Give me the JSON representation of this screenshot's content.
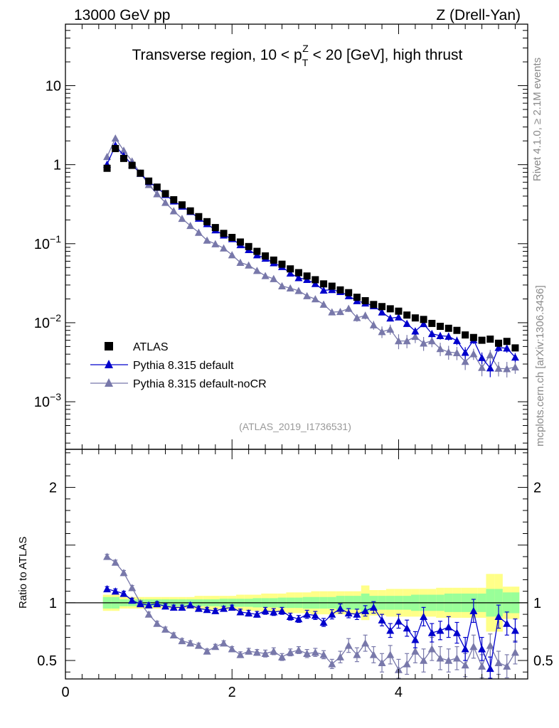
{
  "header": {
    "left": "13000 GeV pp",
    "right": "Z (Drell-Yan)"
  },
  "side_text": {
    "rivet": "Rivet 4.1.0, ≥ 2.1M events",
    "mcplots": "mcplots.cern.ch [arXiv:1306.3436]"
  },
  "colors": {
    "data": "#000000",
    "default": "#0000cc",
    "nocr": "#7878aa",
    "band_stat": "#99ff99",
    "band_total": "#ffff88",
    "ref_label": "#999999"
  },
  "chart_data": {
    "type": "scatter",
    "title": "Transverse region, 10 < p_T^Z < 20 [GeV], high thrust",
    "title_parts": {
      "before": "Transverse region, 10 < p",
      "sub": "T",
      "sup": "Z",
      "after": " < 20 [GeV], high thrust"
    },
    "analysis_label": "(ATLAS_2019_I1736531)",
    "xlim": [
      0,
      5.55
    ],
    "x_ticks": [
      0,
      2,
      4
    ],
    "x_tick_labels": [
      "0",
      "2",
      "4"
    ],
    "main": {
      "yscale": "log",
      "ylim": [
        0.00025,
        60
      ],
      "y_ticks": [
        10,
        1,
        0.1,
        0.01,
        0.001
      ],
      "y_tick_labels": {
        "10": {
          "base": "10",
          "exp": ""
        },
        "1": {
          "base": "1",
          "exp": ""
        },
        "0.1": {
          "base": "10",
          "exp": "−1"
        },
        "0.01": {
          "base": "10",
          "exp": "−2"
        },
        "0.001": {
          "base": "10",
          "exp": "−3"
        }
      }
    },
    "ratio": {
      "ylabel": "Ratio to ATLAS",
      "ylim": [
        0.34,
        2.33
      ],
      "y_ticks": [
        0.5,
        1,
        2
      ],
      "y_tick_labels": [
        "0.5",
        "1",
        "2"
      ]
    },
    "legend": {
      "location": "lower-left",
      "entries": [
        {
          "key": "atlas",
          "label": "ATLAS"
        },
        {
          "key": "default",
          "label": "Pythia 8.315 default"
        },
        {
          "key": "nocr",
          "label": "Pythia 8.315 default-noCR"
        }
      ]
    },
    "x": [
      0.5,
      0.6,
      0.7,
      0.8,
      0.9,
      1.0,
      1.1,
      1.2,
      1.3,
      1.4,
      1.5,
      1.6,
      1.7,
      1.8,
      1.9,
      2.0,
      2.1,
      2.2,
      2.3,
      2.4,
      2.5,
      2.6,
      2.7,
      2.8,
      2.9,
      3.0,
      3.1,
      3.2,
      3.3,
      3.4,
      3.5,
      3.6,
      3.7,
      3.8,
      3.9,
      4.0,
      4.1,
      4.2,
      4.3,
      4.4,
      4.5,
      4.6,
      4.7,
      4.8,
      4.9,
      5.0,
      5.1,
      5.2,
      5.3,
      5.4
    ],
    "series": [
      {
        "name": "ATLAS",
        "key": "atlas",
        "values": [
          0.9,
          1.6,
          1.2,
          0.98,
          0.78,
          0.62,
          0.52,
          0.43,
          0.36,
          0.31,
          0.26,
          0.22,
          0.19,
          0.16,
          0.135,
          0.12,
          0.105,
          0.092,
          0.08,
          0.07,
          0.062,
          0.055,
          0.048,
          0.043,
          0.039,
          0.035,
          0.031,
          0.029,
          0.026,
          0.024,
          0.021,
          0.019,
          0.017,
          0.016,
          0.015,
          0.014,
          0.0125,
          0.0115,
          0.011,
          0.0098,
          0.009,
          0.0085,
          0.008,
          0.007,
          0.0065,
          0.006,
          0.0062,
          0.0055,
          0.0058,
          0.0048
        ],
        "band_stat": [
          0.05,
          0.05,
          0.03,
          0.03,
          0.03,
          0.03,
          0.03,
          0.03,
          0.03,
          0.03,
          0.03,
          0.03,
          0.03,
          0.03,
          0.035,
          0.035,
          0.035,
          0.035,
          0.04,
          0.04,
          0.04,
          0.045,
          0.045,
          0.045,
          0.05,
          0.05,
          0.05,
          0.05,
          0.06,
          0.06,
          0.06,
          0.08,
          0.06,
          0.06,
          0.06,
          0.06,
          0.06,
          0.07,
          0.07,
          0.07,
          0.07,
          0.08,
          0.08,
          0.08,
          0.08,
          0.08,
          0.12,
          0.12,
          0.09,
          0.09
        ],
        "band_total": [
          0.07,
          0.07,
          0.05,
          0.05,
          0.05,
          0.05,
          0.05,
          0.05,
          0.05,
          0.05,
          0.05,
          0.06,
          0.06,
          0.06,
          0.06,
          0.06,
          0.07,
          0.07,
          0.07,
          0.08,
          0.08,
          0.08,
          0.09,
          0.09,
          0.09,
          0.1,
          0.1,
          0.1,
          0.1,
          0.1,
          0.1,
          0.15,
          0.11,
          0.11,
          0.12,
          0.12,
          0.12,
          0.12,
          0.12,
          0.12,
          0.13,
          0.13,
          0.13,
          0.13,
          0.13,
          0.13,
          0.25,
          0.25,
          0.14,
          0.14
        ]
      },
      {
        "name": "Pythia 8.315 default",
        "key": "default",
        "ratio": [
          1.12,
          1.1,
          1.08,
          1.02,
          0.99,
          0.98,
          0.99,
          0.97,
          0.96,
          0.96,
          0.98,
          0.95,
          0.94,
          0.93,
          0.95,
          0.96,
          0.92,
          0.91,
          0.9,
          0.93,
          0.92,
          0.93,
          0.88,
          0.86,
          0.9,
          0.89,
          0.83,
          0.9,
          0.95,
          0.91,
          0.9,
          0.93,
          0.96,
          0.85,
          0.76,
          0.84,
          0.78,
          0.68,
          0.88,
          0.74,
          0.76,
          0.79,
          0.74,
          0.6,
          0.93,
          0.6,
          0.43,
          0.88,
          0.82,
          0.76
        ],
        "ratio_err": [
          0.02,
          0.02,
          0.02,
          0.02,
          0.02,
          0.02,
          0.02,
          0.02,
          0.02,
          0.02,
          0.02,
          0.02,
          0.02,
          0.02,
          0.02,
          0.02,
          0.025,
          0.025,
          0.025,
          0.03,
          0.03,
          0.03,
          0.03,
          0.03,
          0.035,
          0.035,
          0.035,
          0.04,
          0.04,
          0.04,
          0.045,
          0.045,
          0.05,
          0.05,
          0.06,
          0.06,
          0.07,
          0.07,
          0.08,
          0.08,
          0.08,
          0.09,
          0.09,
          0.1,
          0.1,
          0.1,
          0.1,
          0.1,
          0.1,
          0.1
        ]
      },
      {
        "name": "Pythia 8.315 default-noCR",
        "key": "nocr",
        "ratio": [
          1.4,
          1.35,
          1.26,
          1.13,
          1.0,
          0.9,
          0.82,
          0.77,
          0.72,
          0.67,
          0.65,
          0.63,
          0.58,
          0.62,
          0.65,
          0.6,
          0.55,
          0.58,
          0.57,
          0.56,
          0.58,
          0.53,
          0.57,
          0.59,
          0.56,
          0.57,
          0.55,
          0.47,
          0.53,
          0.63,
          0.55,
          0.65,
          0.55,
          0.48,
          0.55,
          0.42,
          0.47,
          0.58,
          0.5,
          0.6,
          0.52,
          0.5,
          0.52,
          0.46,
          0.62,
          0.45,
          0.63,
          0.48,
          0.45,
          0.57
        ],
        "ratio_err": [
          0.02,
          0.02,
          0.02,
          0.02,
          0.02,
          0.02,
          0.02,
          0.02,
          0.02,
          0.02,
          0.02,
          0.02,
          0.02,
          0.02,
          0.02,
          0.02,
          0.025,
          0.025,
          0.025,
          0.03,
          0.03,
          0.03,
          0.03,
          0.03,
          0.035,
          0.035,
          0.035,
          0.04,
          0.05,
          0.06,
          0.06,
          0.07,
          0.07,
          0.08,
          0.08,
          0.09,
          0.09,
          0.1,
          0.1,
          0.1,
          0.1,
          0.1,
          0.1,
          0.1,
          0.1,
          0.1,
          0.1,
          0.1,
          0.1,
          0.1
        ]
      }
    ]
  }
}
